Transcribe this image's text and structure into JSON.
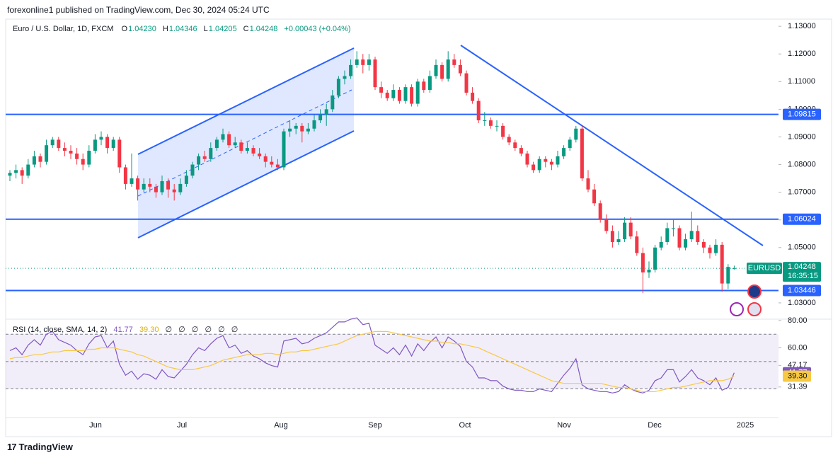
{
  "header": {
    "publisher": "forexonline1 published on TradingView.com, Dec 30, 2024 05:24 UTC"
  },
  "footer": {
    "brand": "TradingView"
  },
  "chart_data": [
    {
      "type": "candlestick",
      "title": "Euro / U.S. Dollar, 1D, FXCM",
      "legend": {
        "open_label": "O",
        "open": "1.04230",
        "high_label": "H",
        "high": "1.04346",
        "low_label": "L",
        "low": "1.04205",
        "close_label": "C",
        "close": "1.04248",
        "change": "+0.00043 (+0.04%)"
      },
      "symbol": "EURUSD",
      "countdown": "16:35:15",
      "last_price": {
        "value": 1.04248,
        "label": "1.04248"
      },
      "colors": {
        "up": "#089981",
        "down": "#f23645",
        "level": "#2962ff"
      },
      "ylim": [
        1.0241,
        1.1326
      ],
      "yticks": [
        {
          "value": 1.13,
          "label": "1.13000"
        },
        {
          "value": 1.12,
          "label": "1.12000"
        },
        {
          "value": 1.11,
          "label": "1.11000"
        },
        {
          "value": 1.1,
          "label": "1.10000"
        },
        {
          "value": 1.09,
          "label": "1.09000"
        },
        {
          "value": 1.08,
          "label": "1.08000"
        },
        {
          "value": 1.07,
          "label": "1.07000"
        },
        {
          "value": 1.06,
          "label": "1.06000"
        },
        {
          "value": 1.05,
          "label": "1.05000"
        },
        {
          "value": 1.03,
          "label": "1.03000"
        }
      ],
      "levels": [
        {
          "value": 1.09815,
          "label": "1.09815"
        },
        {
          "value": 1.06024,
          "label": "1.06024"
        },
        {
          "value": 1.03446,
          "label": "1.03446"
        }
      ],
      "x_labels": [
        "Jun",
        "Jul",
        "Aug",
        "Sep",
        "Oct",
        "Nov",
        "Dec",
        "2025"
      ],
      "candles": [
        [
          1.076,
          1.078,
          1.074,
          1.077
        ],
        [
          1.077,
          1.08,
          1.075,
          1.078
        ],
        [
          1.078,
          1.079,
          1.073,
          1.076
        ],
        [
          1.076,
          1.082,
          1.075,
          1.08
        ],
        [
          1.08,
          1.085,
          1.079,
          1.083
        ],
        [
          1.083,
          1.084,
          1.079,
          1.081
        ],
        [
          1.081,
          1.089,
          1.08,
          1.087
        ],
        [
          1.087,
          1.09,
          1.086,
          1.089
        ],
        [
          1.089,
          1.09,
          1.085,
          1.086
        ],
        [
          1.086,
          1.088,
          1.083,
          1.085
        ],
        [
          1.085,
          1.087,
          1.082,
          1.084
        ],
        [
          1.084,
          1.086,
          1.08,
          1.082
        ],
        [
          1.082,
          1.084,
          1.078,
          1.08
        ],
        [
          1.08,
          1.087,
          1.079,
          1.085
        ],
        [
          1.085,
          1.091,
          1.084,
          1.089
        ],
        [
          1.089,
          1.092,
          1.087,
          1.09
        ],
        [
          1.09,
          1.091,
          1.084,
          1.086
        ],
        [
          1.086,
          1.09,
          1.085,
          1.089
        ],
        [
          1.089,
          1.09,
          1.077,
          1.079
        ],
        [
          1.079,
          1.08,
          1.071,
          1.073
        ],
        [
          1.073,
          1.084,
          1.072,
          1.075
        ],
        [
          1.075,
          1.076,
          1.067,
          1.071
        ],
        [
          1.071,
          1.075,
          1.07,
          1.073
        ],
        [
          1.073,
          1.075,
          1.07,
          1.072
        ],
        [
          1.072,
          1.073,
          1.068,
          1.07
        ],
        [
          1.07,
          1.076,
          1.069,
          1.074
        ],
        [
          1.074,
          1.075,
          1.068,
          1.071
        ],
        [
          1.071,
          1.073,
          1.067,
          1.07
        ],
        [
          1.07,
          1.075,
          1.069,
          1.073
        ],
        [
          1.073,
          1.078,
          1.072,
          1.076
        ],
        [
          1.076,
          1.081,
          1.075,
          1.08
        ],
        [
          1.08,
          1.084,
          1.078,
          1.083
        ],
        [
          1.083,
          1.085,
          1.081,
          1.082
        ],
        [
          1.082,
          1.088,
          1.081,
          1.086
        ],
        [
          1.086,
          1.09,
          1.085,
          1.089
        ],
        [
          1.089,
          1.093,
          1.088,
          1.091
        ],
        [
          1.091,
          1.092,
          1.086,
          1.087
        ],
        [
          1.087,
          1.09,
          1.086,
          1.088
        ],
        [
          1.088,
          1.089,
          1.084,
          1.085
        ],
        [
          1.085,
          1.088,
          1.084,
          1.086
        ],
        [
          1.086,
          1.087,
          1.083,
          1.084
        ],
        [
          1.084,
          1.086,
          1.082,
          1.083
        ],
        [
          1.083,
          1.084,
          1.079,
          1.081
        ],
        [
          1.081,
          1.083,
          1.079,
          1.08
        ],
        [
          1.08,
          1.082,
          1.078,
          1.079
        ],
        [
          1.079,
          1.093,
          1.078,
          1.092
        ],
        [
          1.092,
          1.096,
          1.09,
          1.093
        ],
        [
          1.093,
          1.095,
          1.091,
          1.094
        ],
        [
          1.094,
          1.095,
          1.088,
          1.092
        ],
        [
          1.092,
          1.095,
          1.091,
          1.093
        ],
        [
          1.093,
          1.098,
          1.092,
          1.096
        ],
        [
          1.096,
          1.1,
          1.095,
          1.098
        ],
        [
          1.098,
          1.102,
          1.094,
          1.1
        ],
        [
          1.1,
          1.107,
          1.099,
          1.105
        ],
        [
          1.105,
          1.112,
          1.104,
          1.111
        ],
        [
          1.111,
          1.114,
          1.109,
          1.112
        ],
        [
          1.112,
          1.118,
          1.111,
          1.116
        ],
        [
          1.116,
          1.121,
          1.115,
          1.118
        ],
        [
          1.118,
          1.12,
          1.113,
          1.116
        ],
        [
          1.116,
          1.12,
          1.114,
          1.118
        ],
        [
          1.118,
          1.119,
          1.107,
          1.108
        ],
        [
          1.108,
          1.11,
          1.104,
          1.106
        ],
        [
          1.106,
          1.107,
          1.103,
          1.104
        ],
        [
          1.104,
          1.109,
          1.103,
          1.107
        ],
        [
          1.107,
          1.108,
          1.102,
          1.103
        ],
        [
          1.103,
          1.109,
          1.102,
          1.108
        ],
        [
          1.108,
          1.109,
          1.101,
          1.102
        ],
        [
          1.102,
          1.111,
          1.101,
          1.11
        ],
        [
          1.11,
          1.111,
          1.106,
          1.107
        ],
        [
          1.107,
          1.114,
          1.106,
          1.112
        ],
        [
          1.112,
          1.118,
          1.111,
          1.116
        ],
        [
          1.116,
          1.117,
          1.11,
          1.111
        ],
        [
          1.111,
          1.121,
          1.11,
          1.118
        ],
        [
          1.118,
          1.12,
          1.115,
          1.116
        ],
        [
          1.116,
          1.118,
          1.112,
          1.113
        ],
        [
          1.113,
          1.114,
          1.105,
          1.106
        ],
        [
          1.106,
          1.108,
          1.102,
          1.103
        ],
        [
          1.103,
          1.104,
          1.095,
          1.096
        ],
        [
          1.096,
          1.099,
          1.094,
          1.096
        ],
        [
          1.096,
          1.097,
          1.093,
          1.094
        ],
        [
          1.094,
          1.096,
          1.092,
          1.094
        ],
        [
          1.094,
          1.095,
          1.089,
          1.09
        ],
        [
          1.09,
          1.091,
          1.087,
          1.088
        ],
        [
          1.088,
          1.089,
          1.085,
          1.086
        ],
        [
          1.086,
          1.087,
          1.083,
          1.084
        ],
        [
          1.084,
          1.085,
          1.079,
          1.08
        ],
        [
          1.08,
          1.081,
          1.077,
          1.078
        ],
        [
          1.078,
          1.083,
          1.077,
          1.082
        ],
        [
          1.082,
          1.083,
          1.079,
          1.081
        ],
        [
          1.081,
          1.082,
          1.078,
          1.08
        ],
        [
          1.08,
          1.085,
          1.079,
          1.083
        ],
        [
          1.083,
          1.087,
          1.082,
          1.086
        ],
        [
          1.086,
          1.09,
          1.085,
          1.089
        ],
        [
          1.089,
          1.094,
          1.088,
          1.093
        ],
        [
          1.093,
          1.094,
          1.074,
          1.075
        ],
        [
          1.075,
          1.078,
          1.07,
          1.071
        ],
        [
          1.071,
          1.073,
          1.065,
          1.066
        ],
        [
          1.066,
          1.067,
          1.059,
          1.06
        ],
        [
          1.06,
          1.062,
          1.055,
          1.056
        ],
        [
          1.056,
          1.058,
          1.05,
          1.052
        ],
        [
          1.052,
          1.056,
          1.051,
          1.053
        ],
        [
          1.053,
          1.061,
          1.052,
          1.059
        ],
        [
          1.059,
          1.061,
          1.053,
          1.054
        ],
        [
          1.054,
          1.056,
          1.047,
          1.048
        ],
        [
          1.048,
          1.05,
          1.0335,
          1.041
        ],
        [
          1.041,
          1.045,
          1.039,
          1.042
        ],
        [
          1.042,
          1.051,
          1.041,
          1.05
        ],
        [
          1.05,
          1.054,
          1.049,
          1.052
        ],
        [
          1.052,
          1.059,
          1.051,
          1.057
        ],
        [
          1.057,
          1.06,
          1.054,
          1.057
        ],
        [
          1.057,
          1.058,
          1.049,
          1.05
        ],
        [
          1.05,
          1.055,
          1.049,
          1.053
        ],
        [
          1.053,
          1.063,
          1.052,
          1.056
        ],
        [
          1.056,
          1.058,
          1.051,
          1.052
        ],
        [
          1.052,
          1.053,
          1.048,
          1.05
        ],
        [
          1.05,
          1.051,
          1.046,
          1.048
        ],
        [
          1.048,
          1.053,
          1.047,
          1.051
        ],
        [
          1.051,
          1.052,
          1.034,
          1.037
        ],
        [
          1.037,
          1.044,
          1.035,
          1.043
        ],
        [
          1.0423,
          1.04346,
          1.04205,
          1.04248
        ]
      ]
    },
    {
      "type": "line",
      "title": "RSI (14, close, SMA, 14, 2)",
      "null_symbols": "∅ ∅ ∅ ∅ ∅ ∅",
      "ylim": [
        9,
        81
      ],
      "yticks": [
        {
          "value": 80,
          "label": "80.00"
        },
        {
          "value": 60,
          "label": "60.00"
        },
        {
          "value": 47.17,
          "label": "47.17"
        },
        {
          "value": 31.39,
          "label": "31.39"
        }
      ],
      "bands": {
        "upper": 70,
        "middle": 50,
        "lower": 30
      },
      "band_color": "#7e57c2",
      "series": [
        {
          "color": "#7e57c2",
          "values": [
            58,
            60,
            55,
            62,
            66,
            62,
            70,
            72,
            66,
            64,
            62,
            58,
            55,
            63,
            68,
            69,
            60,
            65,
            48,
            40,
            43,
            37,
            41,
            40,
            37,
            44,
            39,
            38,
            43,
            48,
            55,
            60,
            58,
            63,
            67,
            69,
            60,
            62,
            56,
            58,
            54,
            52,
            49,
            47,
            46,
            65,
            66,
            67,
            63,
            64,
            67,
            69,
            71,
            75,
            79,
            79,
            81,
            82,
            77,
            78,
            62,
            59,
            56,
            60,
            55,
            62,
            54,
            63,
            58,
            64,
            68,
            60,
            68,
            65,
            61,
            50,
            46,
            38,
            38,
            36,
            36,
            32,
            30,
            29,
            29,
            28,
            28,
            30,
            29,
            28,
            34,
            40,
            45,
            52,
            33,
            30,
            29,
            28,
            28,
            27,
            28,
            33,
            30,
            28,
            27,
            29,
            36,
            38,
            44,
            44,
            35,
            39,
            44,
            38,
            36,
            33,
            38,
            29,
            31,
            41.77
          ]
        },
        {
          "color": "#f7c843",
          "last_value_label": "39.30",
          "values": [
            52,
            53,
            53,
            54,
            55,
            55,
            56,
            57,
            57,
            58,
            58,
            58,
            58,
            59,
            59,
            60,
            60,
            60,
            59,
            58,
            57,
            55,
            54,
            52,
            50,
            48,
            46,
            45,
            44,
            44,
            44,
            45,
            46,
            47,
            49,
            51,
            52,
            53,
            54,
            55,
            55,
            55,
            56,
            56,
            55,
            56,
            57,
            57,
            58,
            58,
            59,
            60,
            61,
            62,
            63,
            65,
            67,
            69,
            70,
            71,
            72,
            72,
            72,
            71,
            70,
            69,
            68,
            67,
            66,
            65,
            65,
            64,
            64,
            63,
            63,
            62,
            61,
            60,
            58,
            56,
            54,
            52,
            50,
            48,
            46,
            44,
            42,
            40,
            38,
            36,
            35,
            34,
            34,
            34,
            34,
            34,
            34,
            34,
            33,
            32,
            31,
            31,
            30,
            29,
            28,
            28,
            28,
            29,
            30,
            31,
            31,
            32,
            33,
            34,
            35,
            36,
            36,
            36,
            37,
            39.3
          ]
        }
      ]
    }
  ]
}
